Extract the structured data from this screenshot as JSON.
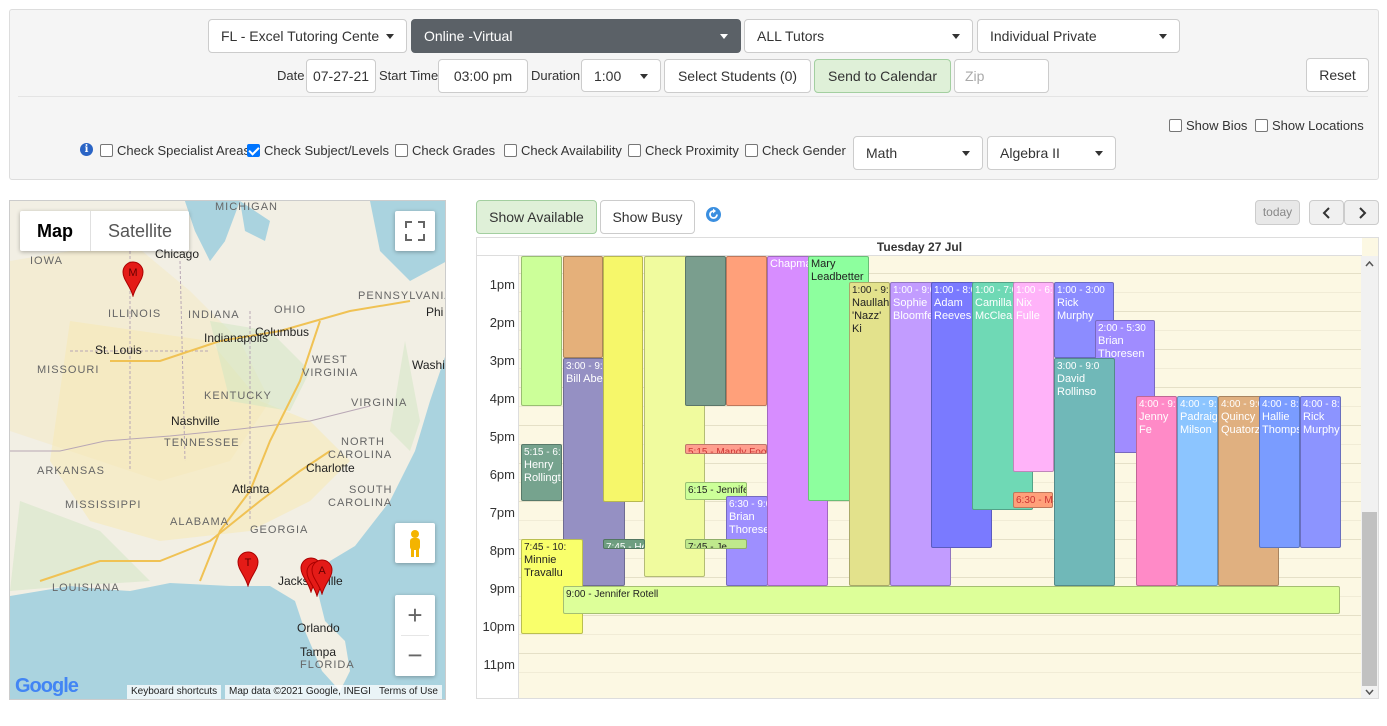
{
  "filters": {
    "center": "FL - Excel Tutoring Cente",
    "mode": "Online -Virtual",
    "tutors": "ALL Tutors",
    "session_type": "Individual Private"
  },
  "schedule": {
    "date_label": "Date",
    "date_value": "07-27-21",
    "start_label": "Start Time",
    "start_value": "03:00 pm",
    "duration_label": "Duration",
    "duration_value": "1:00",
    "select_students": "Select Students (0)",
    "send_to_calendar": "Send to Calendar",
    "zip_placeholder": "Zip",
    "reset": "Reset"
  },
  "checks": {
    "show_bios": "Show Bios",
    "show_locations": "Show Locations",
    "specialist": "Check Specialist Areas",
    "subject_levels": "Check Subject/Levels",
    "grades": "Check Grades",
    "availability": "Check Availability",
    "proximity": "Check Proximity",
    "gender": "Check Gender",
    "subject_checked": true,
    "subject": "Math",
    "level": "Algebra II"
  },
  "map": {
    "tab_map": "Map",
    "tab_satellite": "Satellite",
    "states": [
      "MICHIGAN",
      "IOWA",
      "PENNSYLVANIA",
      "ILLINOIS",
      "INDIANA",
      "OHIO",
      "MISSOURI",
      "WEST",
      "VIRGINIA",
      "KENTUCKY",
      "VIRGINIA",
      "TENNESSEE",
      "NORTH",
      "CAROLINA",
      "ARKANSAS",
      "SOUTH",
      "CAROLINA",
      "MISSISSIPPI",
      "ALABAMA",
      "GEORGIA",
      "LOUISIANA",
      "FLORIDA"
    ],
    "cities": [
      "Chicago",
      "Indianapolis",
      "Columbus",
      "St. Louis",
      "Washington",
      "Nashville",
      "Charlotte",
      "Atlanta",
      "Jacksonville",
      "Orlando",
      "Tampa",
      "Phi"
    ],
    "attribution": {
      "shortcuts": "Keyboard shortcuts",
      "data": "Map data ©2021 Google, INEGI",
      "terms": "Terms of Use"
    },
    "logo": "Google",
    "pin_labels": [
      "M",
      "T",
      "A"
    ]
  },
  "calendar": {
    "show_available": "Show Available",
    "show_busy": "Show Busy",
    "today": "today",
    "day_header": "Tuesday 27 Jul",
    "hours": [
      "1pm",
      "2pm",
      "3pm",
      "4pm",
      "5pm",
      "6pm",
      "7pm",
      "8pm",
      "9pm",
      "10pm",
      "11pm"
    ],
    "events": [
      {
        "time": "",
        "name": "",
        "color": "#ccff99"
      },
      {
        "time": "3:00 - 9:0",
        "name": "Bill Abe",
        "color": "#9590c3"
      },
      {
        "time": "",
        "name": "",
        "color": "#e5b07a"
      },
      {
        "time": "",
        "name": "",
        "color": "#f6f76a"
      },
      {
        "time": "",
        "name": "",
        "color": "#f0fb9e"
      },
      {
        "time": "",
        "name": "",
        "color": "#7a9e8e"
      },
      {
        "time": "",
        "name": "",
        "color": "#ffa07a"
      },
      {
        "time": "5:15 - 6:4",
        "name": "Henry Rollingto",
        "color": "#76a38e"
      },
      {
        "time": "5:15 - Mandy Food",
        "name": "",
        "color": "#ff9e8e"
      },
      {
        "time": "6:15 - Jennife",
        "name": "",
        "color": "#ccff99"
      },
      {
        "time": "6:30 - 9:0",
        "name": "Brian Thorese",
        "color": "#9e8fff"
      },
      {
        "time": "7:45 - 10:",
        "name": "Minnie Travallu",
        "color": "#f9ff6b"
      },
      {
        "time": "7:45 - He",
        "name": "",
        "color": "#6e9e80"
      },
      {
        "time": "7:45 - Je",
        "name": "",
        "color": "#bfe88c"
      },
      {
        "time": "",
        "name": "Chapma",
        "color": "#d78dff"
      },
      {
        "time": "",
        "name": "Mary Leadbetter",
        "color": "#8dff9e"
      },
      {
        "time": "1:00 - 9:0",
        "name": "Naullah 'Nazz' Ki",
        "color": "#e3e28c"
      },
      {
        "time": "1:00 - 9:0",
        "name": "Sophie Bloomfe",
        "color": "#c29cff"
      },
      {
        "time": "1:00 - 8:0",
        "name": "Adam Reeves",
        "color": "#7a7aff"
      },
      {
        "time": "1:00 - 7:0",
        "name": "Camilla McClean",
        "color": "#6fd9b5"
      },
      {
        "time": "1:00 - 6:0",
        "name": "Nix Fulle",
        "color": "#ffb3f9"
      },
      {
        "time": "6:30 - Ma",
        "name": "",
        "color": "#ffa07a"
      },
      {
        "time": "1:00 - 3:00",
        "name": "Rick Murphy",
        "color": "#8c8cff"
      },
      {
        "time": "2:00 - 5:30",
        "name": "Brian Thoresen",
        "color": "#a08cff"
      },
      {
        "time": "3:00 - 9:0",
        "name": "David Rollinso",
        "color": "#70b8b8"
      },
      {
        "time": "4:00 - 9:0",
        "name": "Jenny Fe",
        "color": "#ff8ac7"
      },
      {
        "time": "4:00 - 9:0",
        "name": "Padraig Milson",
        "color": "#8cc5ff"
      },
      {
        "time": "4:00 - 9:0",
        "name": "Quincy Quatorz",
        "color": "#e0b080"
      },
      {
        "time": "4:00 - 8:0",
        "name": "Hallie Thomps",
        "color": "#7a9cff"
      },
      {
        "time": "4:00 - 8:0",
        "name": "Rick Murphy",
        "color": "#8c94ff"
      },
      {
        "time": "9:00 - Jennifer Rotell",
        "name": "",
        "color": "#ddff99"
      }
    ]
  }
}
